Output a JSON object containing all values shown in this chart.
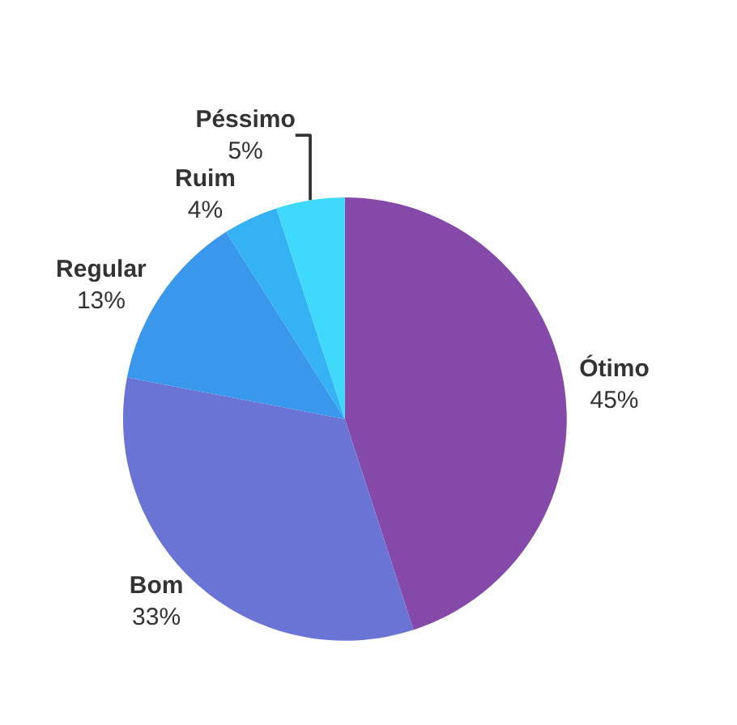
{
  "chart_data": {
    "type": "pie",
    "categories": [
      "Ótimo",
      "Bom",
      "Regular",
      "Ruim",
      "Péssimo"
    ],
    "values": [
      45,
      33,
      13,
      4,
      5
    ],
    "value_labels": [
      "45%",
      "33%",
      "13%",
      "4%",
      "5%"
    ],
    "colors": [
      "#8549a9",
      "#6a74d4",
      "#3a98ec",
      "#34b2f4",
      "#3ed9fb"
    ],
    "legend": false
  }
}
